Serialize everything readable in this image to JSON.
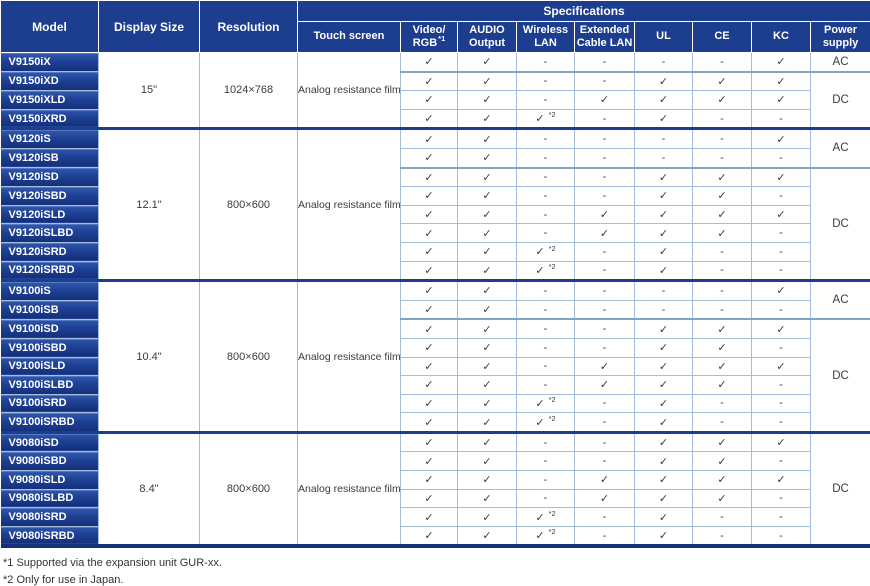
{
  "colors": {
    "header_navy": "#1d3d8f",
    "model_gradient_top": "#3058ac",
    "model_gradient_bottom": "#142f7a",
    "row_border": "#a5bedb",
    "acdc_border": "#7fa6c6",
    "section_border": "#1d3d8f",
    "bottom_border": "#12307c",
    "text": "#3b3b3b"
  },
  "table": {
    "header": {
      "model": "Model",
      "display_size": "Display Size",
      "resolution": "Resolution",
      "specifications": "Specifications",
      "touch_screen": "Touch screen",
      "video_rgb": {
        "line1": "Video/",
        "line2": "RGB",
        "sup": "*1"
      },
      "audio": {
        "line1": "AUDIO",
        "line2": "Output"
      },
      "wireless": {
        "line1": "Wireless",
        "line2": "LAN"
      },
      "extended": {
        "line1": "Extended",
        "line2": "Cable LAN"
      },
      "ul": "UL",
      "ce": "CE",
      "kc": "KC",
      "power": {
        "line1": "Power",
        "line2": "supply"
      }
    },
    "symbols": {
      "check": "✓",
      "dash": "-",
      "wireless_sup": "*2"
    },
    "spec_column_names": [
      "video-rgb",
      "audio-output",
      "wireless-lan",
      "extended-cable-lan",
      "ul",
      "ce",
      "kc"
    ],
    "sections": [
      {
        "display_size": "15\"",
        "resolution": "1024×768",
        "touch_screen": "Analog resistance film",
        "rows": [
          {
            "model": "V9150iX",
            "cells": [
              "check",
              "check",
              "dash",
              "dash",
              "dash",
              "dash",
              "check"
            ]
          },
          {
            "model": "V9150iXD",
            "cells": [
              "check",
              "check",
              "dash",
              "dash",
              "check",
              "check",
              "check"
            ]
          },
          {
            "model": "V9150iXLD",
            "cells": [
              "check",
              "check",
              "dash",
              "check",
              "check",
              "check",
              "check"
            ]
          },
          {
            "model": "V9150iXRD",
            "cells": [
              "check",
              "check",
              "check2",
              "dash",
              "check",
              "dash",
              "dash"
            ]
          }
        ],
        "power_groups": [
          {
            "label": "AC",
            "span": 1
          },
          {
            "label": "DC",
            "span": 3
          }
        ],
        "dc_boundary_row": 1
      },
      {
        "display_size": "12.1\"",
        "resolution": "800×600",
        "touch_screen": "Analog resistance film",
        "rows": [
          {
            "model": "V9120iS",
            "cells": [
              "check",
              "check",
              "dash",
              "dash",
              "dash",
              "dash",
              "check"
            ]
          },
          {
            "model": "V9120iSB",
            "cells": [
              "check",
              "check",
              "dash",
              "dash",
              "dash",
              "dash",
              "dash"
            ]
          },
          {
            "model": "V9120iSD",
            "cells": [
              "check",
              "check",
              "dash",
              "dash",
              "check",
              "check",
              "check"
            ]
          },
          {
            "model": "V9120iSBD",
            "cells": [
              "check",
              "check",
              "dash",
              "dash",
              "check",
              "check",
              "dash"
            ]
          },
          {
            "model": "V9120iSLD",
            "cells": [
              "check",
              "check",
              "dash",
              "check",
              "check",
              "check",
              "check"
            ]
          },
          {
            "model": "V9120iSLBD",
            "cells": [
              "check",
              "check",
              "dash",
              "check",
              "check",
              "check",
              "dash"
            ]
          },
          {
            "model": "V9120iSRD",
            "cells": [
              "check",
              "check",
              "check2",
              "dash",
              "check",
              "dash",
              "dash"
            ]
          },
          {
            "model": "V9120iSRBD",
            "cells": [
              "check",
              "check",
              "check2",
              "dash",
              "check",
              "dash",
              "dash"
            ]
          }
        ],
        "power_groups": [
          {
            "label": "AC",
            "span": 2
          },
          {
            "label": "DC",
            "span": 6
          }
        ],
        "dc_boundary_row": 2
      },
      {
        "display_size": "10.4\"",
        "resolution": "800×600",
        "touch_screen": "Analog resistance film",
        "rows": [
          {
            "model": "V9100iS",
            "cells": [
              "check",
              "check",
              "dash",
              "dash",
              "dash",
              "dash",
              "check"
            ]
          },
          {
            "model": "V9100iSB",
            "cells": [
              "check",
              "check",
              "dash",
              "dash",
              "dash",
              "dash",
              "dash"
            ]
          },
          {
            "model": "V9100iSD",
            "cells": [
              "check",
              "check",
              "dash",
              "dash",
              "check",
              "check",
              "check"
            ]
          },
          {
            "model": "V9100iSBD",
            "cells": [
              "check",
              "check",
              "dash",
              "dash",
              "check",
              "check",
              "dash"
            ]
          },
          {
            "model": "V9100iSLD",
            "cells": [
              "check",
              "check",
              "dash",
              "check",
              "check",
              "check",
              "check"
            ]
          },
          {
            "model": "V9100iSLBD",
            "cells": [
              "check",
              "check",
              "dash",
              "check",
              "check",
              "check",
              "dash"
            ]
          },
          {
            "model": "V9100iSRD",
            "cells": [
              "check",
              "check",
              "check2",
              "dash",
              "check",
              "dash",
              "dash"
            ]
          },
          {
            "model": "V9100iSRBD",
            "cells": [
              "check",
              "check",
              "check2",
              "dash",
              "check",
              "dash",
              "dash"
            ]
          }
        ],
        "power_groups": [
          {
            "label": "AC",
            "span": 2
          },
          {
            "label": "DC",
            "span": 6
          }
        ],
        "dc_boundary_row": 2
      },
      {
        "display_size": "8.4\"",
        "resolution": "800×600",
        "touch_screen": "Analog resistance film",
        "rows": [
          {
            "model": "V9080iSD",
            "cells": [
              "check",
              "check",
              "dash",
              "dash",
              "check",
              "check",
              "check"
            ]
          },
          {
            "model": "V9080iSBD",
            "cells": [
              "check",
              "check",
              "dash",
              "dash",
              "check",
              "check",
              "dash"
            ]
          },
          {
            "model": "V9080iSLD",
            "cells": [
              "check",
              "check",
              "dash",
              "check",
              "check",
              "check",
              "check"
            ]
          },
          {
            "model": "V9080iSLBD",
            "cells": [
              "check",
              "check",
              "dash",
              "check",
              "check",
              "check",
              "dash"
            ]
          },
          {
            "model": "V9080iSRD",
            "cells": [
              "check",
              "check",
              "check2",
              "dash",
              "check",
              "dash",
              "dash"
            ]
          },
          {
            "model": "V9080iSRBD",
            "cells": [
              "check",
              "check",
              "check2",
              "dash",
              "check",
              "dash",
              "dash"
            ]
          }
        ],
        "power_groups": [
          {
            "label": "DC",
            "span": 6
          }
        ],
        "dc_boundary_row": null
      }
    ]
  },
  "footnotes": [
    "*1 Supported via the expansion unit GUR-xx.",
    "*2 Only for use in Japan."
  ]
}
